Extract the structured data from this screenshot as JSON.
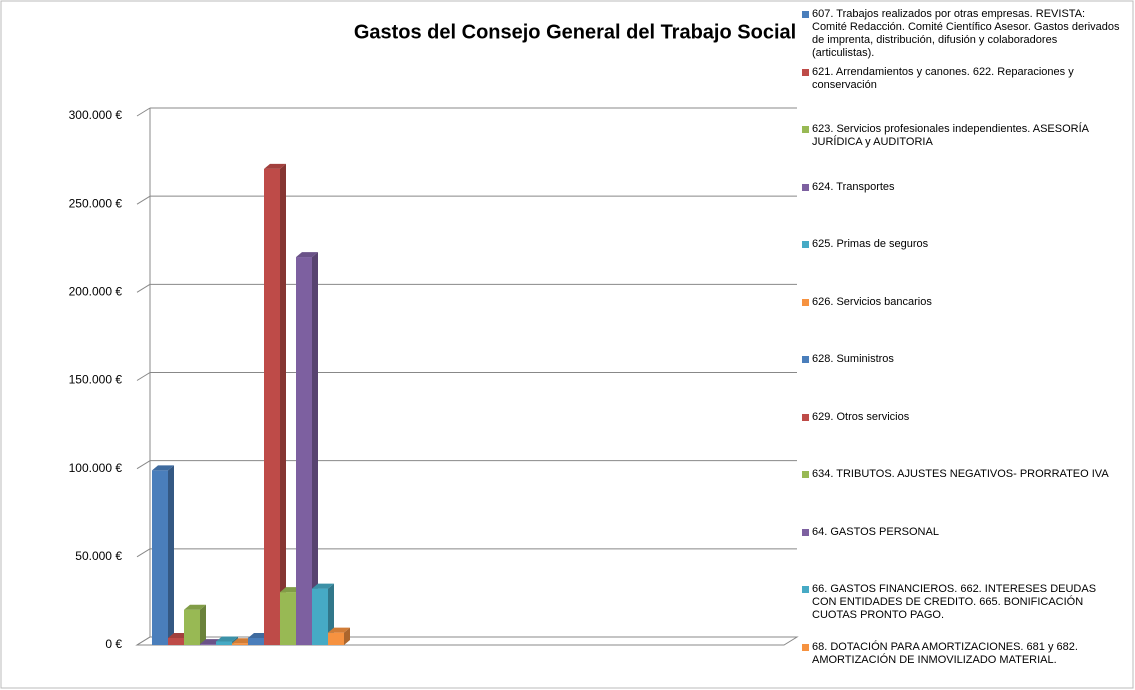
{
  "chart_data": {
    "type": "bar3d",
    "title": "Gastos del Consejo General del Trabajo Social",
    "categories": [
      null
    ],
    "series": [
      {
        "name": "607. Trabajos realizados por otras empresas. REVISTA: Comité Redacción. Comité Científico Asesor. Gastos derivados de imprenta, distribución, difusión y colaboradores (articulistas).",
        "color": "#4a7ebb",
        "values": [
          99000
        ]
      },
      {
        "name": "621. Arrendamientos y canones. 622. Reparaciones y conservación",
        "color": "#be4b48",
        "values": [
          4000
        ]
      },
      {
        "name": "623. Servicios profesionales independientes. ASESORÍA JURÍDICA y AUDITORIA",
        "color": "#98b954",
        "values": [
          20000
        ]
      },
      {
        "name": "624. Transportes",
        "color": "#7d60a0",
        "values": [
          500
        ]
      },
      {
        "name": "625. Primas de seguros",
        "color": "#46aac5",
        "values": [
          2000
        ]
      },
      {
        "name": "626. Servicios bancarios",
        "color": "#f69240",
        "values": [
          1000
        ]
      },
      {
        "name": "628. Suministros",
        "color": "#4a7ebb",
        "values": [
          4000
        ]
      },
      {
        "name": "629. Otros servicios",
        "color": "#be4b48",
        "values": [
          270000
        ]
      },
      {
        "name": "634. TRIBUTOS. AJUSTES NEGATIVOS- PRORRATEO IVA",
        "color": "#98b954",
        "values": [
          30000
        ]
      },
      {
        "name": "64. GASTOS PERSONAL",
        "color": "#7d60a0",
        "values": [
          220000
        ]
      },
      {
        "name": "66. GASTOS FINANCIEROS. 662. INTERESES DEUDAS CON ENTIDADES DE CREDITO. 665. BONIFICACIÓN CUOTAS PRONTO PAGO.",
        "color": "#46aac5",
        "values": [
          32000
        ]
      },
      {
        "name": "68. DOTACIÓN PARA AMORTIZACIONES. 681 y 682. AMORTIZACIÓN DE INMOVILIZADO MATERIAL.",
        "color": "#f69240",
        "values": [
          7000
        ]
      }
    ],
    "ylim": [
      0,
      300000
    ],
    "yticks": [
      {
        "value": 0,
        "label": "0 €"
      },
      {
        "value": 50000,
        "label": "50.000 €"
      },
      {
        "value": 100000,
        "label": "100.000 €"
      },
      {
        "value": 150000,
        "label": "150.000 €"
      },
      {
        "value": 200000,
        "label": "200.000 €"
      },
      {
        "value": 250000,
        "label": "250.000 €"
      },
      {
        "value": 300000,
        "label": "300.000 €"
      }
    ],
    "grid": true,
    "legend": "right"
  }
}
